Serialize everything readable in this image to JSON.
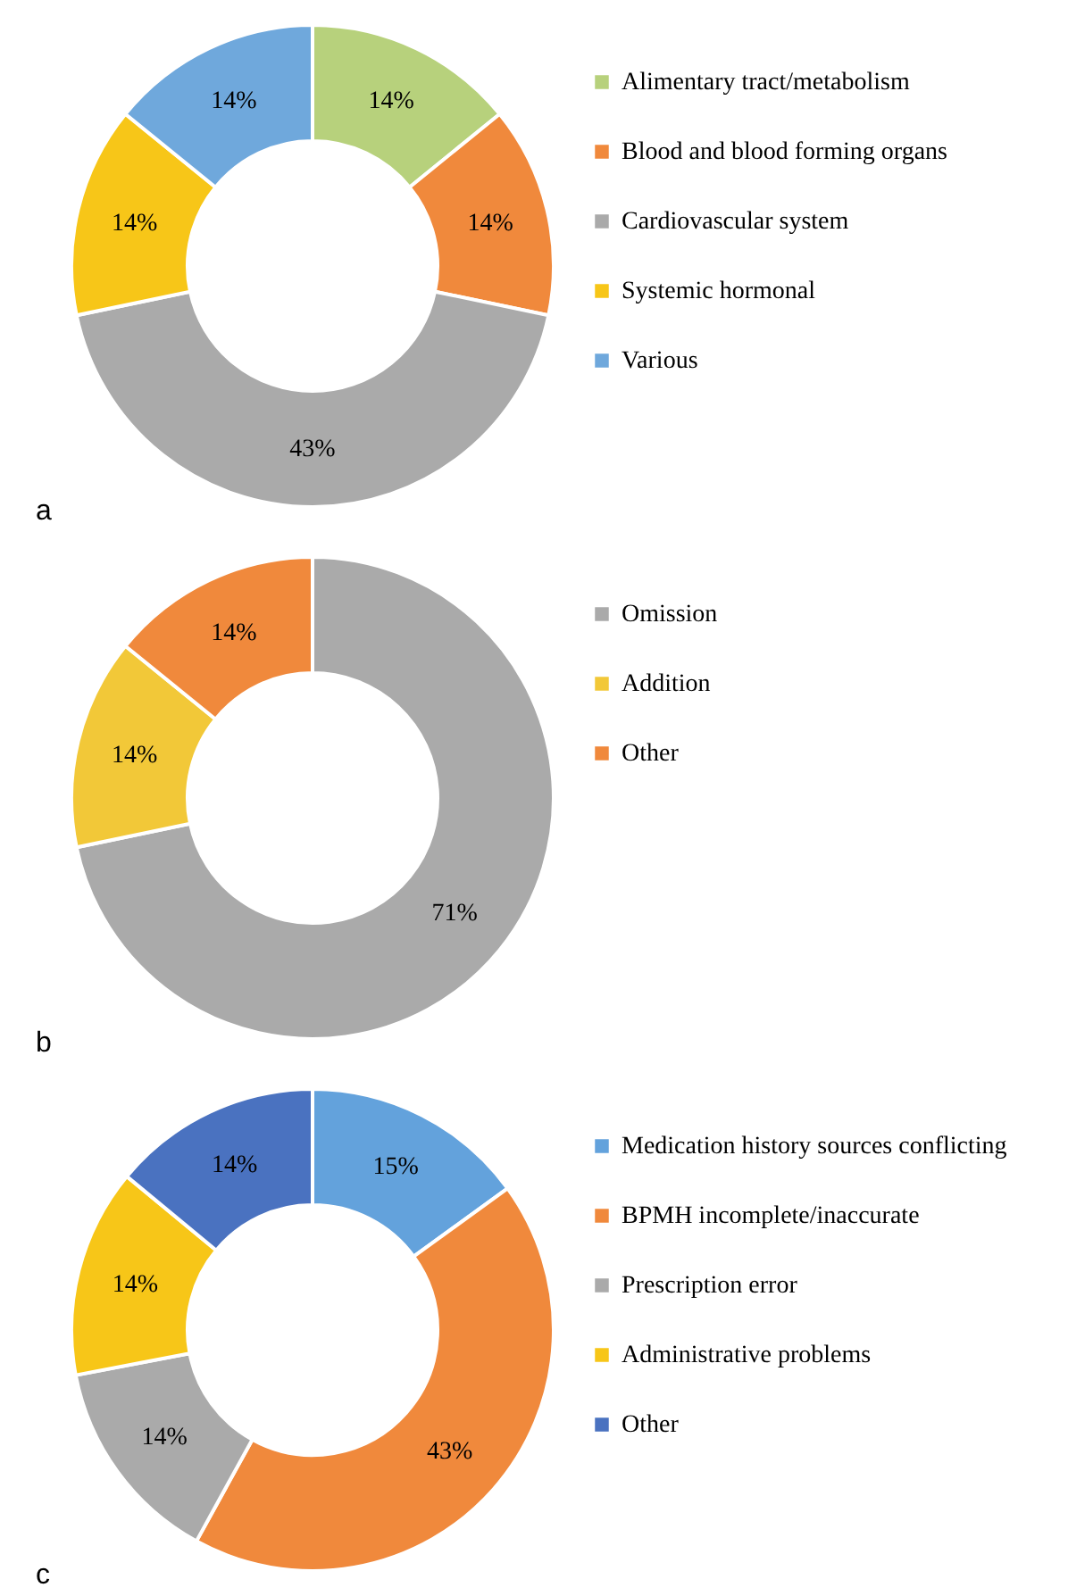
{
  "chart_data": [
    {
      "type": "donut",
      "categories": [
        "Alimentary tract/metabolism",
        "Blood and blood forming organs",
        "Cardiovascular system",
        "Systemic hormonal",
        "Various"
      ],
      "values": [
        14,
        14,
        43,
        14,
        14
      ],
      "colors": [
        "#b7d17c",
        "#f0893c",
        "#aaaaaa",
        "#f7c618",
        "#6fa8dc"
      ],
      "value_labels": [
        "14%",
        "14%",
        "43%",
        "14%",
        "14%"
      ],
      "legend": "right",
      "annotations": [
        "a"
      ]
    },
    {
      "type": "donut",
      "categories": [
        "Omission",
        "Addition",
        "Other"
      ],
      "values": [
        71,
        14,
        14
      ],
      "colors": [
        "#aaaaaa",
        "#f2c838",
        "#f0893c"
      ],
      "value_labels": [
        "71%",
        "14%",
        "14%"
      ],
      "legend": "right",
      "annotations": [
        "b"
      ]
    },
    {
      "type": "donut",
      "categories": [
        "Medication history sources conflicting",
        "BPMH incomplete/inaccurate",
        "Prescription error",
        "Administrative problems",
        "Other"
      ],
      "values": [
        15,
        43,
        14,
        14,
        14
      ],
      "colors": [
        "#63a2dc",
        "#f0893c",
        "#aaaaaa",
        "#f7c618",
        "#4a72c0"
      ],
      "value_labels": [
        "15%",
        "43%",
        "14%",
        "14%",
        "14%"
      ],
      "legend": "right",
      "annotations": [
        "c"
      ]
    }
  ]
}
